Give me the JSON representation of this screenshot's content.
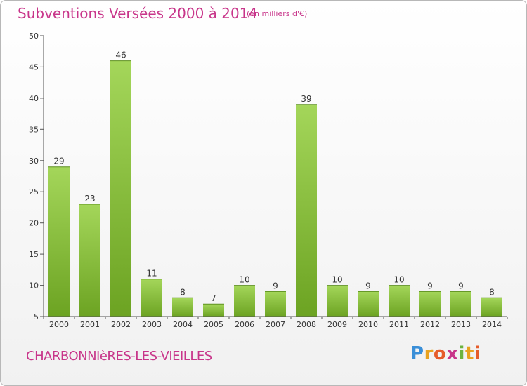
{
  "title": "Subventions Versées 2000 à 2014",
  "unit_note": "(en milliers d'€)",
  "commune": "CHARBONNIèRES-LES-VIEILLES",
  "logo_text": "Proxiti",
  "colors": {
    "title": "#c8358a",
    "bar_light": "#a4d65a",
    "bar_dark": "#6ca322",
    "axis": "#555555",
    "grid": "#dddddd"
  },
  "chart_data": {
    "type": "bar",
    "title": "Subventions Versées 2000 à 2014",
    "subtitle": "(en milliers d'€)",
    "categories": [
      "2000",
      "2001",
      "2002",
      "2003",
      "2004",
      "2005",
      "2006",
      "2007",
      "2008",
      "2009",
      "2010",
      "2011",
      "2012",
      "2013",
      "2014"
    ],
    "values": [
      29,
      23,
      46,
      11,
      8,
      7,
      10,
      9,
      39,
      10,
      9,
      10,
      9,
      9,
      8
    ],
    "ylim": [
      5,
      50
    ],
    "yticks": [
      5,
      10,
      15,
      20,
      25,
      30,
      35,
      40,
      45,
      50
    ],
    "xlabel": "",
    "ylabel": "",
    "grid": false,
    "data_labels": true
  }
}
